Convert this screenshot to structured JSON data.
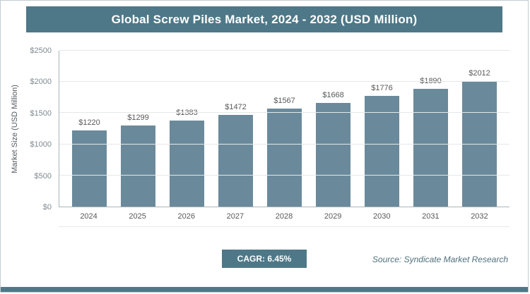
{
  "header": {
    "title": "Global Screw Piles Market, 2024 - 2032 (USD Million)"
  },
  "chart_data": {
    "type": "bar",
    "title": "Global Screw Piles Market, 2024 - 2032 (USD Million)",
    "categories": [
      "2024",
      "2025",
      "2026",
      "2027",
      "2028",
      "2029",
      "2030",
      "2031",
      "2032"
    ],
    "values": [
      1220,
      1299,
      1383,
      1472,
      1567,
      1668,
      1776,
      1890,
      2012
    ],
    "value_labels": [
      "$1220",
      "$1299",
      "$1383",
      "$1472",
      "$1567",
      "$1668",
      "$1776",
      "$1890",
      "$2012"
    ],
    "xlabel": "",
    "ylabel": "Market Size (USD Million)",
    "ylim": [
      0,
      2500
    ],
    "yticks": [
      "$0",
      "$500",
      "$1000",
      "$1500",
      "$2000",
      "$2500"
    ],
    "grid": true,
    "legend": "none"
  },
  "footer": {
    "cagr_label": "CAGR: 6.45%",
    "source": "Source: Syndicate Market Research"
  },
  "colors": {
    "accent": "#4e7887",
    "bar": "#6a8a9b",
    "gridline": "#e4e8ea",
    "axis": "#a9b4b9"
  }
}
